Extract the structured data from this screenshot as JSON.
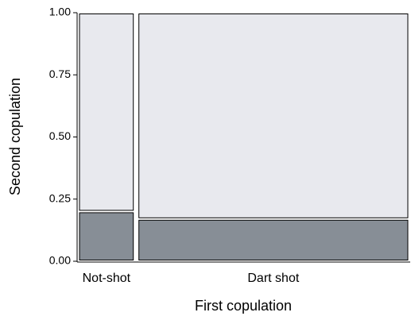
{
  "chart_data": {
    "type": "mosaic",
    "xlabel": "First copulation",
    "ylabel": "Second copulation",
    "categories": [
      "Not-shot",
      "Dart shot"
    ],
    "widths": [
      0.17,
      0.83
    ],
    "series": [
      {
        "color": "#878e96",
        "values": [
          0.2,
          0.17
        ]
      },
      {
        "color": "#e8e9ee",
        "values": [
          0.8,
          0.83
        ]
      }
    ],
    "ylim": [
      0,
      1
    ],
    "yticks": [
      {
        "value": 0,
        "label": "0.00"
      },
      {
        "value": 0.25,
        "label": "0.25"
      },
      {
        "value": 0.5,
        "label": "0.50"
      },
      {
        "value": 0.75,
        "label": "0.75"
      },
      {
        "value": 1,
        "label": "1.00"
      }
    ]
  }
}
